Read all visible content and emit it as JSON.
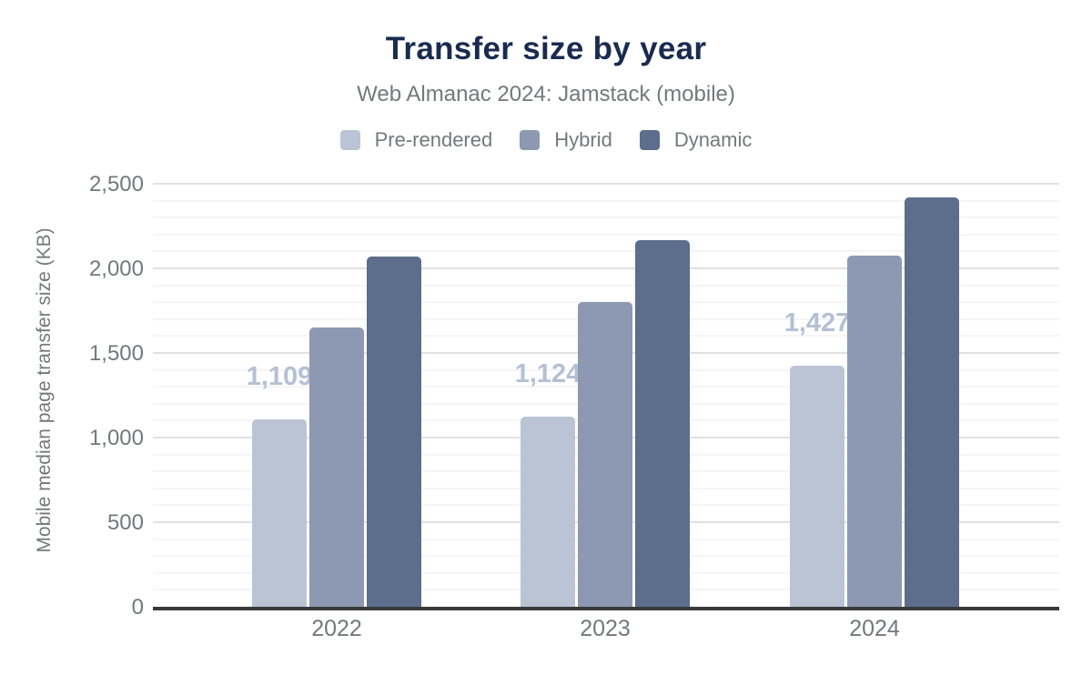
{
  "chart_data": {
    "type": "bar",
    "title": "Transfer size by year",
    "subtitle": "Web Almanac 2024: Jamstack (mobile)",
    "xlabel": "",
    "ylabel": "Mobile median page transfer size (KB)",
    "categories": [
      "2022",
      "2023",
      "2024"
    ],
    "series": [
      {
        "name": "Pre-rendered",
        "color": "#bac4d5",
        "values": [
          1109,
          1124,
          1427
        ],
        "labels": [
          "1,109",
          "1,124",
          "1,427"
        ]
      },
      {
        "name": "Hybrid",
        "color": "#8d99b2",
        "values": [
          1652,
          1803,
          2077
        ],
        "labels": [
          null,
          null,
          null
        ]
      },
      {
        "name": "Dynamic",
        "color": "#5d6d8c",
        "values": [
          2069,
          2169,
          2422
        ],
        "labels": [
          null,
          null,
          null
        ]
      }
    ],
    "ylim": [
      0,
      2500
    ],
    "y_tick_step": 500,
    "y_tick_labels": [
      "0",
      "500",
      "1,000",
      "1,500",
      "2,000",
      "2,500"
    ],
    "minor_grid_step": 100,
    "grid": true,
    "legend_position": "top",
    "data_label_note": "value labels shown for Pre-rendered series only",
    "colors": {
      "title": "#1a2b50",
      "subtitle": "#75787b",
      "axis_text": "#75787b",
      "value_label": "#b4c0d3",
      "baseline": "#3a3a3a",
      "gridline_major": "#e1e1e1",
      "gridline_minor": "#f5f5f5",
      "background": "#ffffff"
    }
  }
}
